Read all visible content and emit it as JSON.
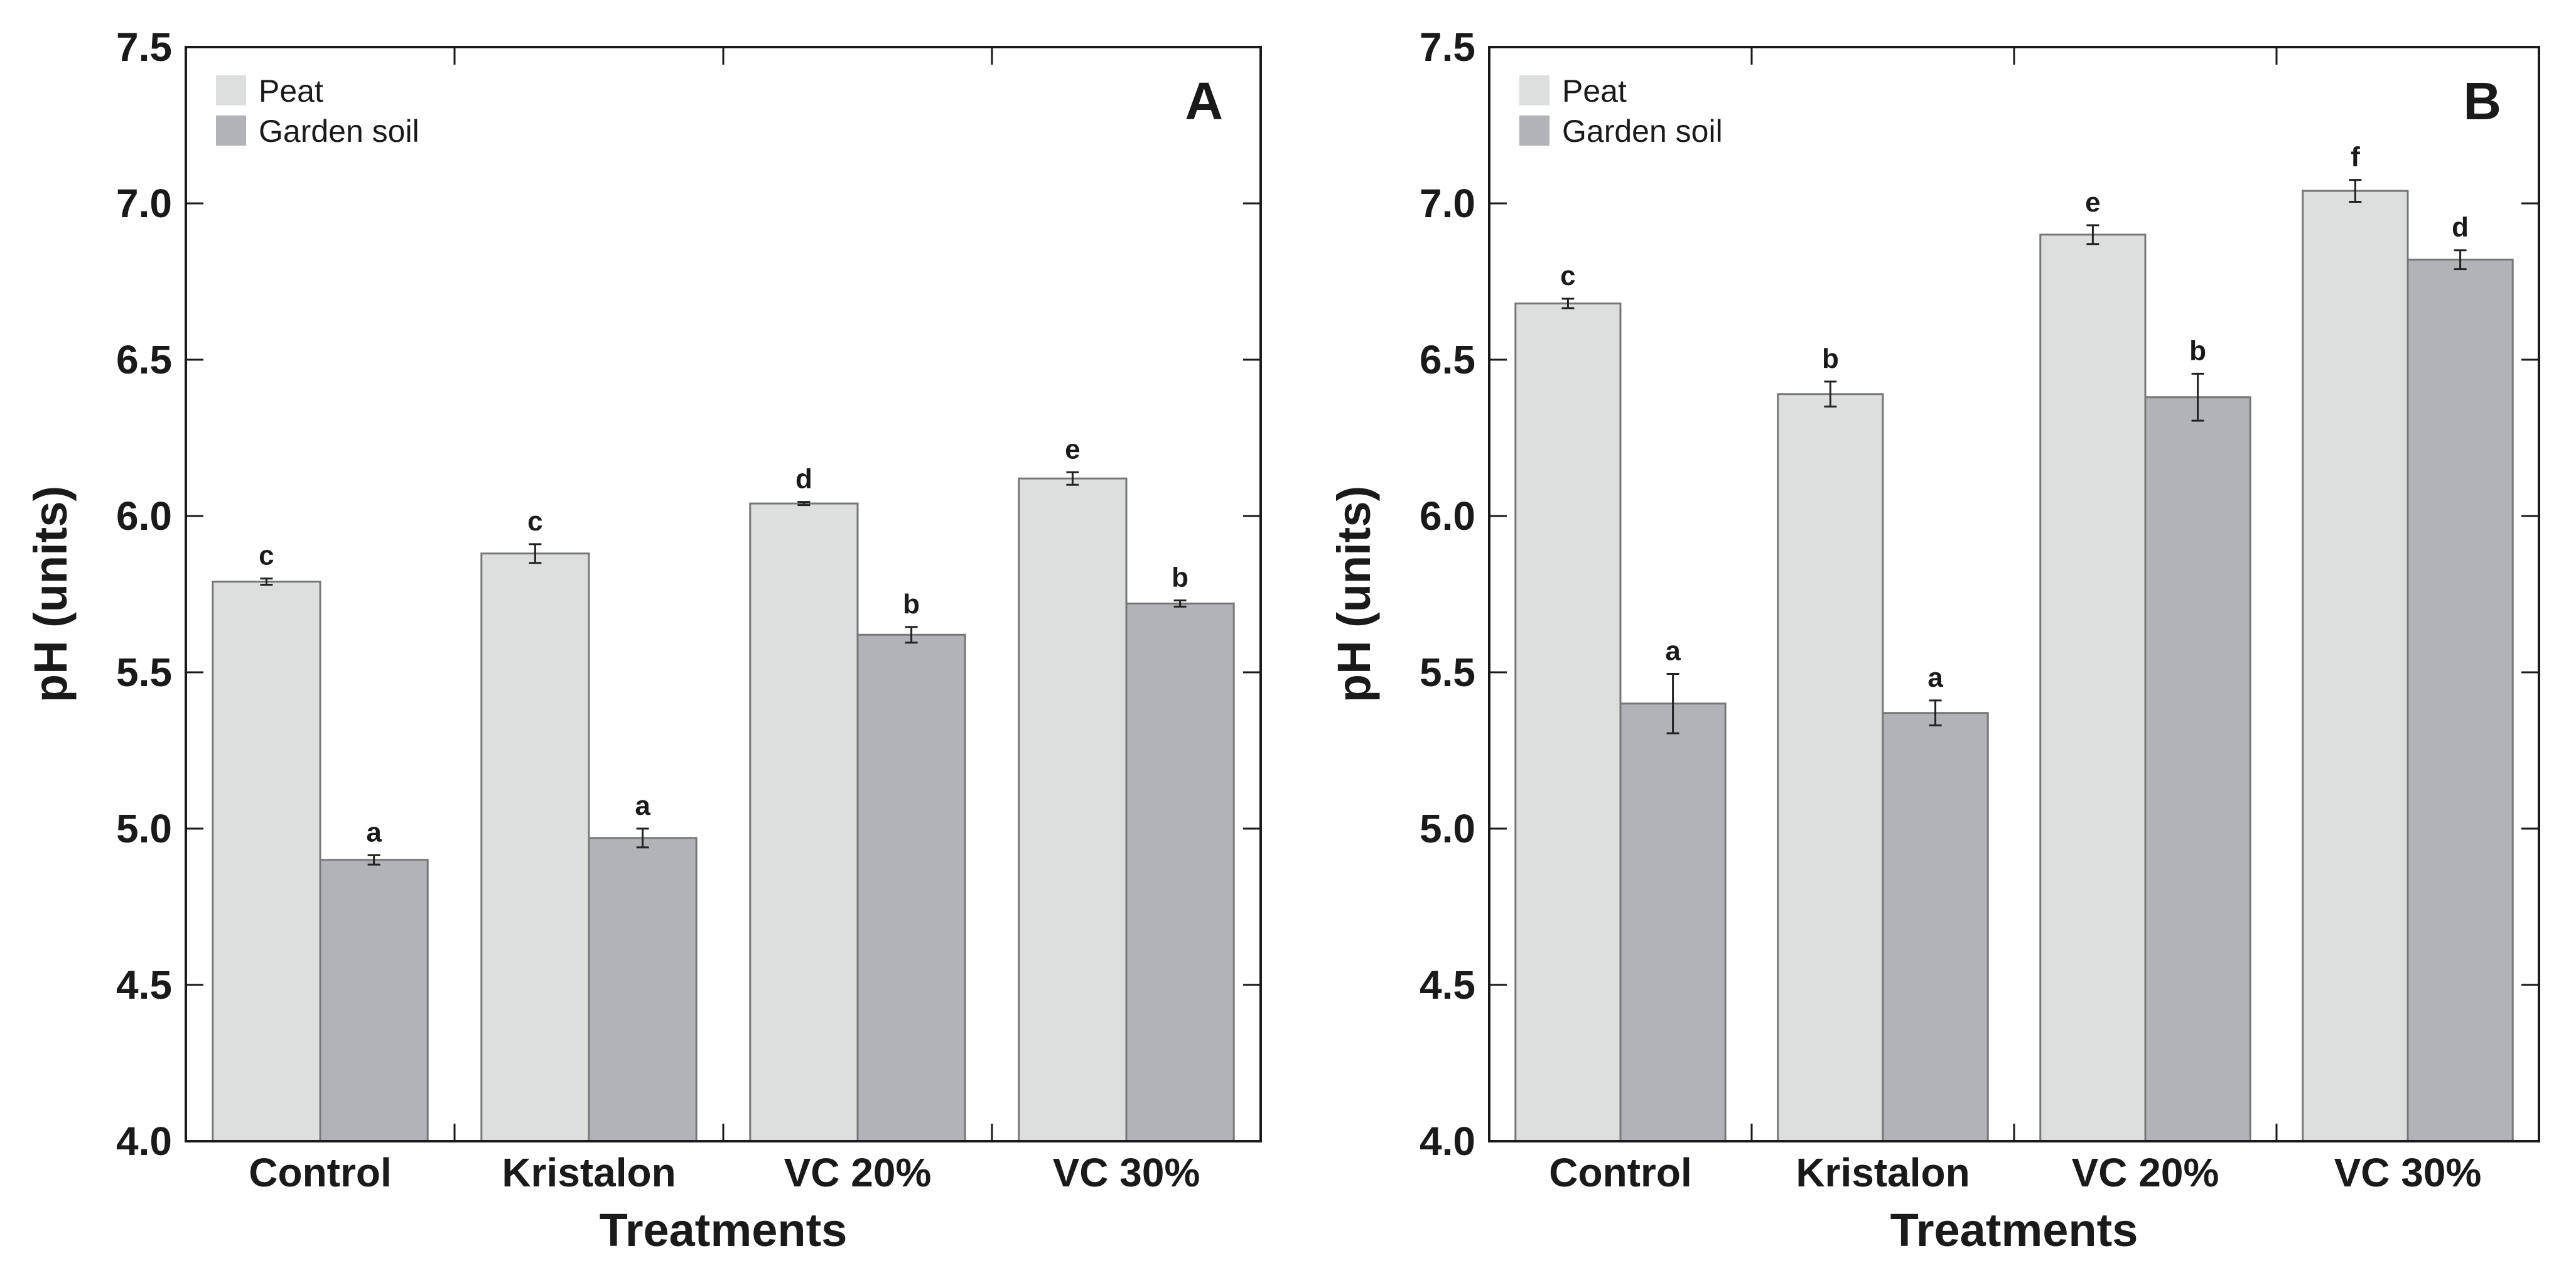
{
  "chart_data": [
    {
      "type": "bar",
      "panel_label": "A",
      "xlabel": "Treatments",
      "ylabel": "pH (units)",
      "ylim": [
        4.0,
        7.5
      ],
      "yticks": [
        "4.0",
        "4.5",
        "5.0",
        "5.5",
        "6.0",
        "6.5",
        "7.0",
        "7.5"
      ],
      "categories": [
        "Control",
        "Kristalon",
        "VC 20%",
        "VC 30%"
      ],
      "legend_position": "top-left",
      "grid": false,
      "series": [
        {
          "name": "Peat",
          "color": "#dcdfde",
          "values": [
            5.79,
            5.88,
            6.04,
            6.12
          ],
          "errors": [
            0.01,
            0.03,
            0.005,
            0.02
          ],
          "letters": [
            "c",
            "c",
            "d",
            "e"
          ]
        },
        {
          "name": "Garden soil",
          "color": "#b1b3b6",
          "values": [
            4.9,
            4.97,
            5.62,
            5.72
          ],
          "errors": [
            0.015,
            0.03,
            0.025,
            0.01
          ],
          "letters": [
            "a",
            "a",
            "b",
            "b"
          ]
        }
      ]
    },
    {
      "type": "bar",
      "panel_label": "B",
      "xlabel": "Treatments",
      "ylabel": "pH (units)",
      "ylim": [
        4.0,
        7.5
      ],
      "yticks": [
        "4.0",
        "4.5",
        "5.0",
        "5.5",
        "6.0",
        "6.5",
        "7.0",
        "7.5"
      ],
      "categories": [
        "Control",
        "Kristalon",
        "VC 20%",
        "VC 30%"
      ],
      "legend_position": "top-left",
      "grid": false,
      "series": [
        {
          "name": "Peat",
          "color": "#dcdfde",
          "values": [
            6.68,
            6.39,
            6.9,
            7.04
          ],
          "errors": [
            0.015,
            0.04,
            0.03,
            0.035
          ],
          "letters": [
            "c",
            "b",
            "e",
            "f"
          ]
        },
        {
          "name": "Garden soil",
          "color": "#b1b3b6",
          "values": [
            5.4,
            5.37,
            6.38,
            6.82
          ],
          "errors": [
            0.095,
            0.04,
            0.075,
            0.03
          ],
          "letters": [
            "a",
            "a",
            "b",
            "d"
          ]
        }
      ]
    }
  ]
}
